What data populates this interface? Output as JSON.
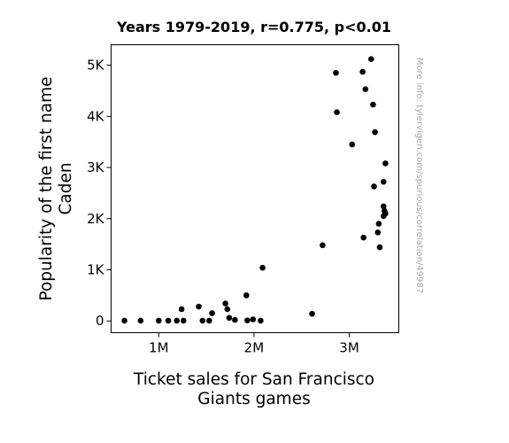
{
  "chart_data": {
    "type": "scatter",
    "title": "Years 1979-2019, r=0.775, p<0.01",
    "xlabel_lines": [
      "Ticket sales for San Francisco",
      "Giants games"
    ],
    "ylabel_lines": [
      "Popularity of the first name",
      "Caden"
    ],
    "watermark": "More info: tylervigen.com/spurious/correlation/49987",
    "xlim": [
      500000,
      3520000
    ],
    "ylim": [
      -230,
      5400
    ],
    "x_ticks": [
      {
        "value": 1000000,
        "label": "1M"
      },
      {
        "value": 2000000,
        "label": "2M"
      },
      {
        "value": 3000000,
        "label": "3M"
      }
    ],
    "y_ticks": [
      {
        "value": 0,
        "label": "0"
      },
      {
        "value": 1000,
        "label": "1K"
      },
      {
        "value": 2000,
        "label": "2K"
      },
      {
        "value": 3000,
        "label": "3K"
      },
      {
        "value": 4000,
        "label": "4K"
      },
      {
        "value": 5000,
        "label": "5K"
      }
    ],
    "marker_color": "#000000",
    "points": [
      [
        640000,
        5
      ],
      [
        810000,
        5
      ],
      [
        1000000,
        5
      ],
      [
        1100000,
        5
      ],
      [
        1190000,
        5
      ],
      [
        1240000,
        230
      ],
      [
        1260000,
        5
      ],
      [
        1420000,
        280
      ],
      [
        1460000,
        5
      ],
      [
        1530000,
        5
      ],
      [
        1560000,
        150
      ],
      [
        1700000,
        340
      ],
      [
        1720000,
        230
      ],
      [
        1740000,
        60
      ],
      [
        1800000,
        20
      ],
      [
        1920000,
        500
      ],
      [
        1930000,
        10
      ],
      [
        1990000,
        30
      ],
      [
        2070000,
        5
      ],
      [
        2090000,
        1040
      ],
      [
        2610000,
        140
      ],
      [
        2720000,
        1480
      ],
      [
        2860000,
        4850
      ],
      [
        2870000,
        4080
      ],
      [
        3030000,
        3450
      ],
      [
        3140000,
        4870
      ],
      [
        3150000,
        1630
      ],
      [
        3170000,
        4530
      ],
      [
        3230000,
        5120
      ],
      [
        3250000,
        4230
      ],
      [
        3260000,
        2630
      ],
      [
        3270000,
        3690
      ],
      [
        3300000,
        1730
      ],
      [
        3310000,
        1900
      ],
      [
        3320000,
        1440
      ],
      [
        3360000,
        2720
      ],
      [
        3360000,
        2240
      ],
      [
        3360000,
        2050
      ],
      [
        3370000,
        2150
      ],
      [
        3380000,
        2100
      ],
      [
        3380000,
        3080
      ]
    ]
  }
}
